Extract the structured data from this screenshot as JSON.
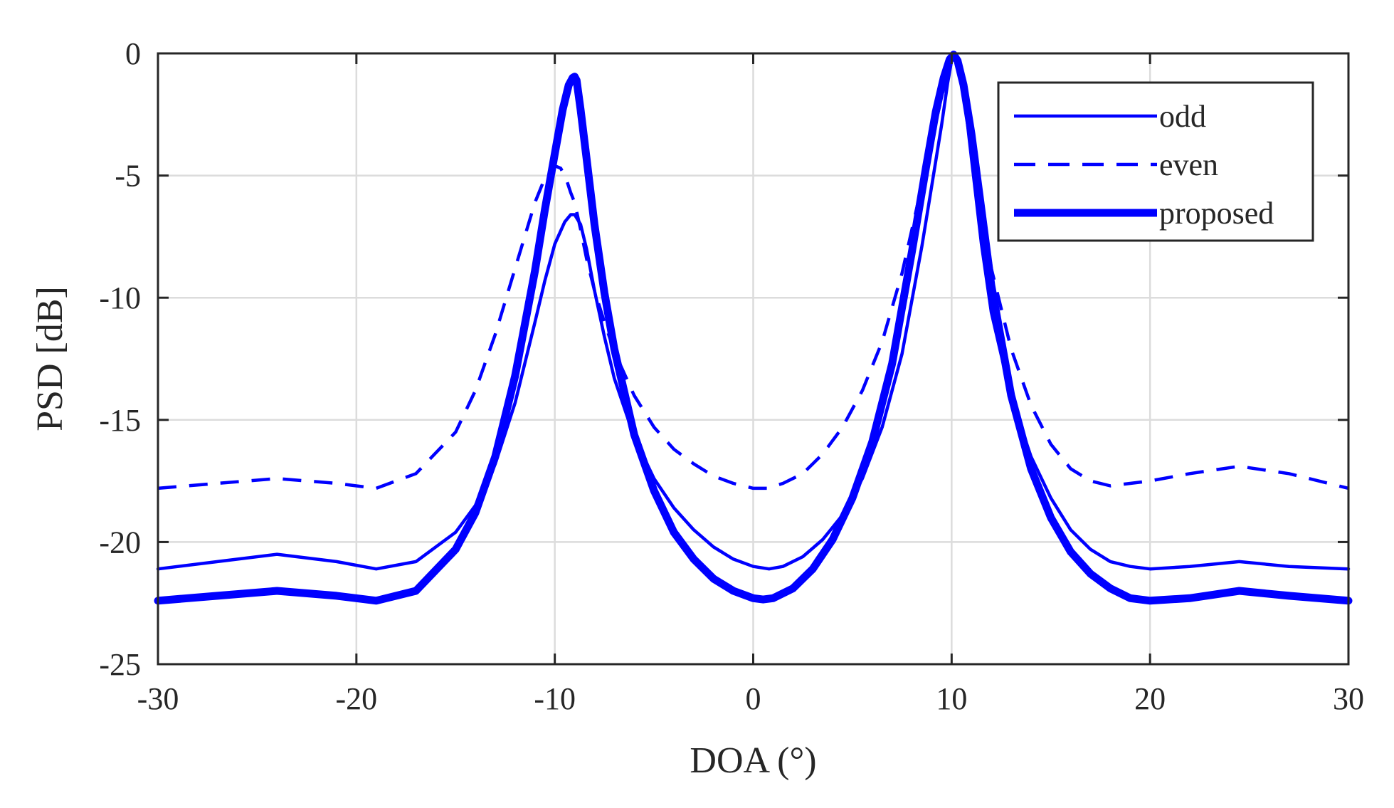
{
  "chart_data": {
    "type": "line",
    "title": "",
    "xlabel": "DOA (°)",
    "ylabel": "PSD [dB]",
    "xlim": [
      -30,
      30
    ],
    "ylim": [
      -25,
      0
    ],
    "xticks": [
      -30,
      -20,
      -10,
      0,
      10,
      20,
      30
    ],
    "xtick_labels": [
      "-30",
      "-20",
      "-10",
      "0",
      "10",
      "20",
      "30"
    ],
    "yticks": [
      0,
      -5,
      -10,
      -15,
      -20,
      -25
    ],
    "ytick_labels": [
      "0",
      "-5",
      "-10",
      "-15",
      "-20",
      "-25"
    ],
    "grid": true,
    "legend_position": "top-right",
    "line_color": "#0000ff",
    "series": [
      {
        "name": "odd",
        "style": "solid",
        "x": [
          -30,
          -27,
          -24,
          -21,
          -19,
          -17,
          -15,
          -14,
          -13,
          -12,
          -11,
          -10.5,
          -10,
          -9.5,
          -9.2,
          -9,
          -8.7,
          -8.4,
          -8,
          -7.5,
          -7,
          -6,
          -5,
          -4,
          -3,
          -2,
          -1,
          0,
          0.8,
          1.5,
          2.5,
          3.5,
          4.5,
          5.5,
          6.5,
          7.5,
          8.5,
          9,
          9.5,
          9.8,
          10,
          10.2,
          10.4,
          10.7,
          11,
          11.5,
          12,
          13,
          14,
          15,
          16,
          17,
          18,
          19,
          20,
          22,
          24.5,
          27,
          30
        ],
        "y": [
          -21.1,
          -20.8,
          -20.5,
          -20.8,
          -21.1,
          -20.8,
          -19.6,
          -18.5,
          -16.8,
          -14.3,
          -11.0,
          -9.3,
          -7.8,
          -6.9,
          -6.6,
          -6.6,
          -7.0,
          -8.0,
          -9.7,
          -11.6,
          -13.3,
          -15.7,
          -17.4,
          -18.6,
          -19.5,
          -20.2,
          -20.7,
          -21.0,
          -21.1,
          -21.0,
          -20.6,
          -19.9,
          -18.9,
          -17.4,
          -15.3,
          -12.3,
          -7.9,
          -5.4,
          -2.9,
          -1.2,
          -0.3,
          -0.05,
          -0.5,
          -2.2,
          -4.3,
          -7.8,
          -10.6,
          -14.1,
          -16.5,
          -18.2,
          -19.5,
          -20.3,
          -20.8,
          -21.0,
          -21.1,
          -21.0,
          -20.8,
          -21.0,
          -21.1
        ]
      },
      {
        "name": "even",
        "style": "dashed",
        "x": [
          -30,
          -27,
          -24,
          -21,
          -19,
          -17,
          -15,
          -14,
          -13,
          -12,
          -11,
          -10.5,
          -10,
          -9.7,
          -9.4,
          -9.2,
          -9,
          -8.7,
          -8.4,
          -8,
          -7.5,
          -7,
          -6,
          -5,
          -4,
          -3,
          -2,
          -1,
          0,
          0.7,
          1.5,
          2.5,
          3.5,
          4.5,
          5.5,
          6.5,
          7.5,
          8.5,
          9,
          9.5,
          9.8,
          10,
          10.2,
          10.4,
          10.7,
          11,
          11.5,
          12,
          13,
          14,
          15,
          16,
          17,
          18,
          19,
          20,
          22,
          24.5,
          27,
          30
        ],
        "y": [
          -17.8,
          -17.6,
          -17.4,
          -17.6,
          -17.8,
          -17.2,
          -15.5,
          -13.8,
          -11.5,
          -8.8,
          -6.1,
          -5.1,
          -4.6,
          -4.7,
          -5.2,
          -5.7,
          -6.1,
          -7.2,
          -8.4,
          -9.7,
          -11.0,
          -12.2,
          -14.0,
          -15.3,
          -16.2,
          -16.8,
          -17.3,
          -17.6,
          -17.8,
          -17.8,
          -17.6,
          -17.2,
          -16.4,
          -15.3,
          -13.8,
          -11.8,
          -9.0,
          -5.4,
          -3.5,
          -1.8,
          -0.8,
          -0.3,
          -0.05,
          -0.4,
          -1.6,
          -3.2,
          -6.0,
          -8.8,
          -12.1,
          -14.4,
          -16.0,
          -17.0,
          -17.5,
          -17.7,
          -17.6,
          -17.5,
          -17.2,
          -16.9,
          -17.2,
          -17.8
        ]
      },
      {
        "name": "proposed",
        "style": "thick",
        "x": [
          -30,
          -27,
          -24,
          -21,
          -19,
          -17,
          -15,
          -14,
          -13,
          -12,
          -11,
          -10.5,
          -10,
          -9.6,
          -9.3,
          -9.1,
          -9,
          -8.9,
          -8.7,
          -8.4,
          -8,
          -7.5,
          -7,
          -6,
          -5,
          -4,
          -3,
          -2,
          -1,
          0,
          0.5,
          1,
          2,
          3,
          4,
          5,
          6,
          7,
          8,
          8.7,
          9.2,
          9.6,
          9.9,
          10.1,
          10.3,
          10.6,
          11,
          11.5,
          12,
          13,
          14,
          15,
          16,
          17,
          18,
          19,
          20,
          22,
          24.5,
          27,
          30
        ],
        "y": [
          -22.4,
          -22.2,
          -22.0,
          -22.2,
          -22.4,
          -22.0,
          -20.3,
          -18.8,
          -16.5,
          -13.2,
          -8.9,
          -6.4,
          -4.1,
          -2.3,
          -1.3,
          -1.0,
          -0.95,
          -1.1,
          -2.3,
          -4.3,
          -7.0,
          -9.8,
          -12.1,
          -15.6,
          -17.9,
          -19.6,
          -20.7,
          -21.5,
          -22.0,
          -22.3,
          -22.35,
          -22.3,
          -21.9,
          -21.1,
          -19.9,
          -18.2,
          -15.9,
          -12.7,
          -8.1,
          -4.7,
          -2.4,
          -1.0,
          -0.25,
          -0.05,
          -0.3,
          -1.3,
          -3.3,
          -6.4,
          -9.5,
          -14.0,
          -17.0,
          -19.0,
          -20.4,
          -21.3,
          -21.9,
          -22.3,
          -22.4,
          -22.3,
          -22.0,
          -22.2,
          -22.4
        ]
      }
    ]
  }
}
